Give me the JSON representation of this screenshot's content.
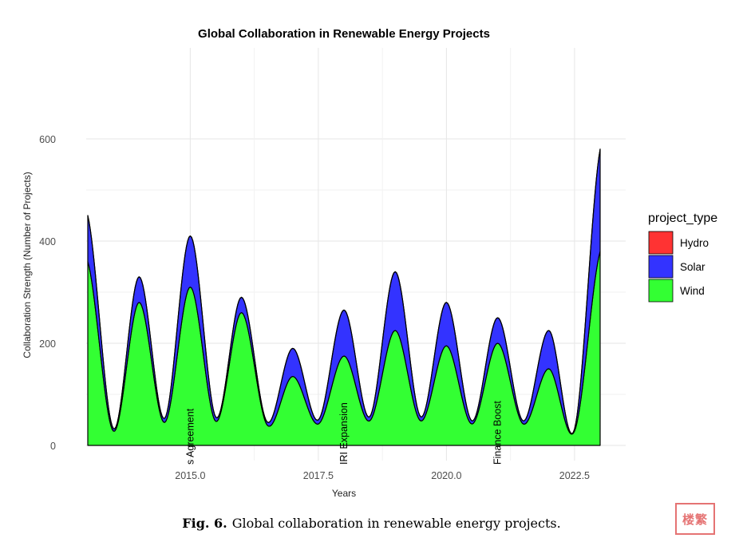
{
  "chart_data": {
    "type": "area",
    "stacked": true,
    "title": "Global Collaboration in Renewable Energy Projects",
    "xlabel": "Years",
    "ylabel": "Collaboration Strength (Number of Projects)",
    "xlim": [
      2013,
      2023
    ],
    "ylim": [
      0,
      740
    ],
    "xticks": [
      2015.0,
      2017.5,
      2020.0,
      2022.5
    ],
    "xtick_labels": [
      "2015.0",
      "2017.5",
      "2020.0",
      "2022.5"
    ],
    "yticks": [
      0,
      200,
      400,
      600
    ],
    "ytick_labels": [
      "0",
      "200",
      "400",
      "600"
    ],
    "legend_title": "project_type",
    "legend_position": "right",
    "series": [
      {
        "name": "Hydro",
        "color": "#ff3333",
        "x": [
          2013,
          2013.5,
          2014,
          2014.5,
          2015,
          2015.5,
          2016,
          2016.5,
          2017,
          2017.5,
          2018,
          2018.5,
          2019,
          2019.5,
          2020,
          2020.5,
          2021,
          2021.5,
          2022,
          2022.5,
          2023
        ],
        "values": [
          0,
          0,
          0,
          0,
          0,
          0,
          0,
          0,
          0,
          0,
          0,
          0,
          0,
          0,
          0,
          0,
          0,
          0,
          0,
          0,
          0
        ]
      },
      {
        "name": "Solar",
        "color": "#3333ff",
        "x": [
          2013,
          2013.5,
          2014,
          2014.5,
          2015,
          2015.5,
          2016,
          2016.5,
          2017,
          2017.5,
          2018,
          2018.5,
          2019,
          2019.5,
          2020,
          2020.5,
          2021,
          2021.5,
          2022,
          2022.5,
          2023
        ],
        "values": [
          90,
          5,
          50,
          8,
          100,
          8,
          30,
          6,
          55,
          8,
          90,
          8,
          115,
          8,
          85,
          6,
          50,
          6,
          75,
          4,
          200
        ]
      },
      {
        "name": "Wind",
        "color": "#33ff33",
        "x": [
          2013,
          2013.5,
          2014,
          2014.5,
          2015,
          2015.5,
          2016,
          2016.5,
          2017,
          2017.5,
          2018,
          2018.5,
          2019,
          2019.5,
          2020,
          2020.5,
          2021,
          2021.5,
          2022,
          2022.5,
          2023
        ],
        "values": [
          360,
          28,
          280,
          45,
          310,
          47,
          260,
          40,
          135,
          42,
          175,
          48,
          225,
          48,
          195,
          42,
          200,
          42,
          150,
          28,
          380
        ]
      }
    ],
    "annotations": [
      {
        "x": 2015.0,
        "y": 0,
        "text": "s Agreement"
      },
      {
        "x": 2018.0,
        "y": 0,
        "text": "IRI Expansion"
      },
      {
        "x": 2021.0,
        "y": 0,
        "text": "Finance Boost"
      }
    ]
  },
  "caption": {
    "label": "Fig. 6.",
    "text": "Global collaboration in renewable energy projects."
  },
  "watermark": "楼繁"
}
